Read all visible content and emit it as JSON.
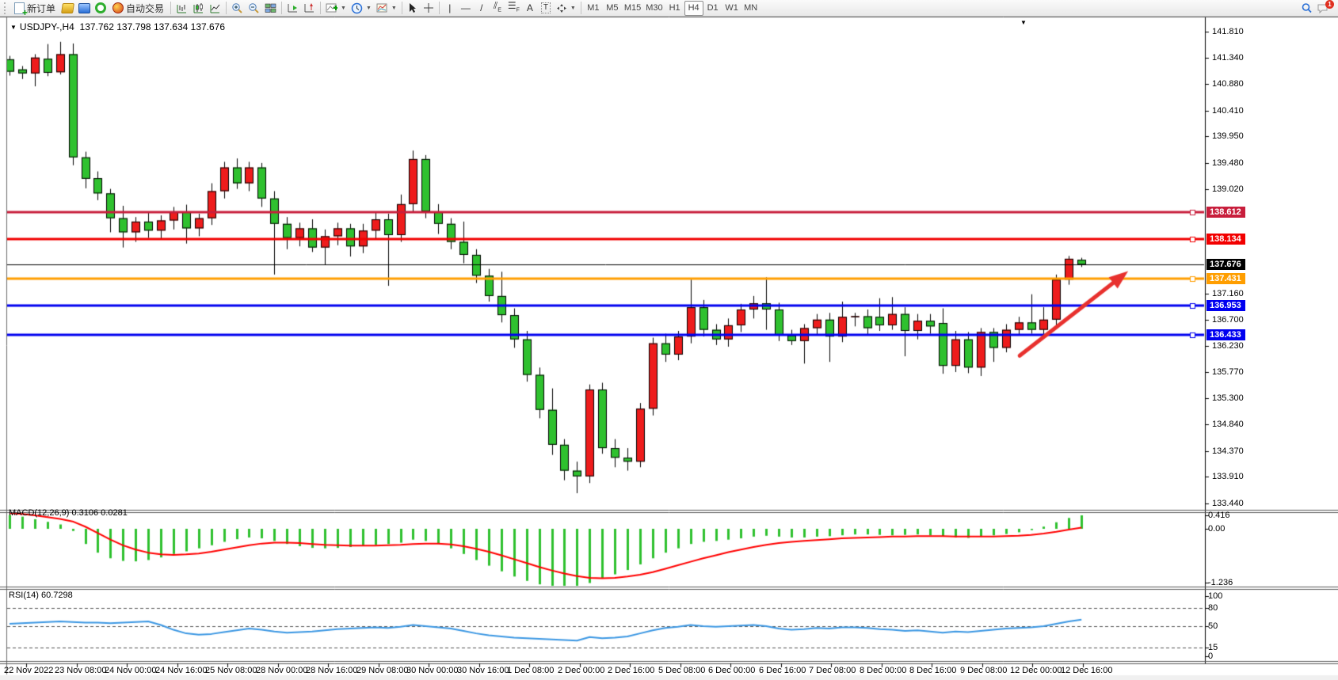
{
  "toolbar": {
    "new_order_label": "新订单",
    "auto_trading_label": "自动交易",
    "timeframes": [
      "M1",
      "M5",
      "M15",
      "M30",
      "H1",
      "H4",
      "D1",
      "W1",
      "MN"
    ],
    "active_timeframe": "H4",
    "notification_badge": "1"
  },
  "icons": {
    "new_order": "document-plus-icon",
    "charts_profile": "gold-cube-icon",
    "terminal": "blue-cube-icon",
    "signals": "green-ring-icon",
    "auto_trading": "red-amber-circle-icon",
    "chart_types": [
      "bar-chart-icon",
      "candlestick-chart-icon",
      "line-chart-icon"
    ],
    "zoom": [
      "zoom-in-icon",
      "zoom-out-icon"
    ],
    "windows": "tile-windows-icon",
    "scroll": [
      "auto-scroll-icon",
      "chart-shift-icon"
    ],
    "menus": [
      "indicators-icon",
      "periods-clock-icon",
      "templates-icon"
    ],
    "pointer": [
      "cursor-icon",
      "crosshair-icon"
    ],
    "objects": [
      "vertical-line-icon",
      "horizontal-line-icon",
      "trendline-icon",
      "equidistant-channel-icon",
      "fibonacci-icon",
      "text-icon",
      "text-label-icon",
      "arrows-icon"
    ],
    "right": [
      "search-icon",
      "chat-icon"
    ]
  },
  "chart": {
    "title_symbol": "USDJPY-,H4",
    "title_ohlc": "137.762 137.798 137.634 137.676",
    "macd_label": "MACD(12,26,9) 0.3106 0.0281",
    "rsi_label": "RSI(14) 60.7298",
    "collapse_marker": "▼"
  },
  "chart_data": {
    "type": "candlestick",
    "symbol": "USDJPY-",
    "timeframe": "H4",
    "title": "USDJPY-,H4 137.762 137.798 137.634 137.676",
    "legend_position": "top-left",
    "grid": "off",
    "price_axis_ticks": [
      141.81,
      141.34,
      140.88,
      140.41,
      139.95,
      139.48,
      139.02,
      137.16,
      136.7,
      136.23,
      135.77,
      135.3,
      134.84,
      134.37,
      133.91,
      133.44
    ],
    "h_lines": [
      {
        "price": 138.612,
        "label": "138.612",
        "color": "#c81e3c",
        "width": 3
      },
      {
        "price": 138.134,
        "label": "138.134",
        "color": "#f20000",
        "width": 3
      },
      {
        "price": 137.676,
        "label": "137.676",
        "color": "#000000",
        "width": 1
      },
      {
        "price": 137.431,
        "label": "137.431",
        "color": "#ff9e00",
        "width": 3
      },
      {
        "price": 136.953,
        "label": "136.953",
        "color": "#0000f0",
        "width": 3
      },
      {
        "price": 136.433,
        "label": "136.433",
        "color": "#0000f0",
        "width": 3
      }
    ],
    "colors": {
      "bull": "#ee1c1c",
      "bear": "#2fc12f",
      "wick": "#000000",
      "macd_hist": "#2fc12f",
      "macd_signal": "#ff0000",
      "rsi": "#3b97e3",
      "arrow": "#e8312e"
    },
    "candles_ohlc": [
      [
        141.32,
        141.38,
        141.03,
        141.1
      ],
      [
        141.14,
        141.2,
        140.97,
        141.07
      ],
      [
        141.07,
        141.41,
        140.84,
        141.35
      ],
      [
        141.33,
        141.59,
        141.02,
        141.08
      ],
      [
        141.09,
        141.63,
        141.05,
        141.41
      ],
      [
        141.41,
        141.6,
        139.44,
        139.58
      ],
      [
        139.58,
        139.68,
        139.03,
        139.2
      ],
      [
        139.21,
        139.33,
        138.82,
        138.94
      ],
      [
        138.94,
        139.02,
        138.25,
        138.5
      ],
      [
        138.5,
        138.72,
        137.98,
        138.25
      ],
      [
        138.25,
        138.52,
        138.08,
        138.44
      ],
      [
        138.44,
        138.62,
        138.15,
        138.28
      ],
      [
        138.28,
        138.55,
        138.12,
        138.46
      ],
      [
        138.46,
        138.7,
        138.3,
        138.62
      ],
      [
        138.62,
        138.74,
        138.05,
        138.32
      ],
      [
        138.32,
        138.58,
        138.18,
        138.5
      ],
      [
        138.5,
        139.12,
        138.38,
        138.98
      ],
      [
        138.98,
        139.5,
        138.85,
        139.4
      ],
      [
        139.4,
        139.56,
        139.02,
        139.12
      ],
      [
        139.12,
        139.5,
        138.98,
        139.4
      ],
      [
        139.4,
        139.48,
        138.7,
        138.85
      ],
      [
        138.85,
        138.98,
        137.5,
        138.4
      ],
      [
        138.4,
        138.52,
        137.95,
        138.15
      ],
      [
        138.15,
        138.42,
        138.0,
        138.32
      ],
      [
        138.32,
        138.48,
        137.9,
        137.98
      ],
      [
        137.98,
        138.3,
        137.68,
        138.18
      ],
      [
        138.18,
        138.42,
        138.02,
        138.32
      ],
      [
        138.32,
        138.4,
        137.82,
        138.0
      ],
      [
        138.0,
        138.4,
        137.88,
        138.28
      ],
      [
        138.28,
        138.6,
        138.12,
        138.48
      ],
      [
        138.48,
        138.58,
        137.3,
        138.2
      ],
      [
        138.2,
        138.92,
        138.08,
        138.75
      ],
      [
        138.75,
        139.7,
        138.6,
        139.55
      ],
      [
        139.55,
        139.62,
        138.5,
        138.62
      ],
      [
        138.62,
        138.75,
        138.22,
        138.4
      ],
      [
        138.4,
        138.5,
        137.95,
        138.08
      ],
      [
        138.08,
        138.44,
        137.7,
        137.85
      ],
      [
        137.85,
        137.95,
        137.35,
        137.48
      ],
      [
        137.48,
        137.6,
        137.02,
        137.12
      ],
      [
        137.12,
        137.55,
        136.65,
        136.78
      ],
      [
        136.78,
        136.9,
        136.2,
        136.35
      ],
      [
        136.35,
        136.5,
        135.6,
        135.72
      ],
      [
        135.72,
        135.85,
        134.95,
        135.1
      ],
      [
        135.1,
        135.48,
        134.3,
        134.48
      ],
      [
        134.48,
        134.58,
        133.85,
        134.02
      ],
      [
        134.02,
        134.18,
        133.62,
        133.92
      ],
      [
        133.92,
        135.55,
        133.8,
        135.46
      ],
      [
        135.46,
        135.58,
        134.32,
        134.42
      ],
      [
        134.42,
        134.58,
        134.08,
        134.25
      ],
      [
        134.25,
        134.42,
        134.02,
        134.18
      ],
      [
        134.18,
        135.22,
        134.08,
        135.12
      ],
      [
        135.12,
        136.38,
        135.0,
        136.28
      ],
      [
        136.28,
        136.45,
        135.95,
        136.08
      ],
      [
        136.08,
        136.5,
        135.98,
        136.4
      ],
      [
        136.4,
        137.41,
        136.28,
        136.92
      ],
      [
        136.92,
        137.05,
        136.4,
        136.52
      ],
      [
        136.52,
        136.62,
        136.25,
        136.35
      ],
      [
        136.35,
        136.72,
        136.22,
        136.6
      ],
      [
        136.6,
        136.98,
        136.48,
        136.88
      ],
      [
        136.88,
        137.12,
        136.72,
        136.99
      ],
      [
        136.99,
        137.45,
        136.52,
        136.88
      ],
      [
        136.88,
        137.0,
        136.32,
        136.42
      ],
      [
        136.42,
        136.52,
        136.25,
        136.32
      ],
      [
        136.32,
        136.62,
        135.92,
        136.55
      ],
      [
        136.55,
        136.8,
        136.42,
        136.7
      ],
      [
        136.7,
        136.82,
        135.95,
        136.4
      ],
      [
        136.4,
        137.02,
        136.3,
        136.75
      ],
      [
        136.75,
        136.82,
        136.58,
        136.76
      ],
      [
        136.76,
        136.88,
        136.42,
        136.55
      ],
      [
        136.75,
        137.08,
        136.5,
        136.6
      ],
      [
        136.6,
        137.1,
        136.52,
        136.8
      ],
      [
        136.8,
        136.92,
        136.05,
        136.5
      ],
      [
        136.5,
        136.8,
        136.35,
        136.68
      ],
      [
        136.68,
        136.8,
        136.45,
        136.58
      ],
      [
        136.64,
        136.9,
        135.74,
        135.88
      ],
      [
        135.88,
        136.5,
        135.77,
        136.35
      ],
      [
        136.35,
        136.48,
        135.75,
        135.85
      ],
      [
        135.85,
        136.55,
        135.7,
        136.48
      ],
      [
        136.48,
        136.55,
        135.95,
        136.2
      ],
      [
        136.2,
        136.62,
        136.12,
        136.52
      ],
      [
        136.52,
        136.75,
        136.42,
        136.65
      ],
      [
        136.65,
        137.15,
        136.45,
        136.52
      ],
      [
        136.52,
        136.92,
        136.44,
        136.7
      ],
      [
        136.7,
        137.5,
        136.55,
        137.41
      ],
      [
        137.41,
        137.83,
        137.32,
        137.78
      ],
      [
        137.762,
        137.798,
        137.634,
        137.676
      ]
    ],
    "macd": {
      "label": "MACD(12,26,9) 0.3106 0.0281",
      "axis_labels": [
        "0.416",
        "0.00",
        "-1.236"
      ],
      "histogram": [
        0.32,
        0.28,
        0.22,
        0.16,
        0.1,
        -0.05,
        -0.35,
        -0.55,
        -0.68,
        -0.74,
        -0.75,
        -0.72,
        -0.66,
        -0.58,
        -0.52,
        -0.45,
        -0.38,
        -0.3,
        -0.24,
        -0.2,
        -0.22,
        -0.28,
        -0.35,
        -0.4,
        -0.44,
        -0.45,
        -0.44,
        -0.42,
        -0.4,
        -0.37,
        -0.35,
        -0.32,
        -0.25,
        -0.28,
        -0.35,
        -0.45,
        -0.58,
        -0.72,
        -0.85,
        -0.98,
        -1.1,
        -1.2,
        -1.28,
        -1.33,
        -1.35,
        -1.34,
        -1.25,
        -1.15,
        -1.05,
        -0.95,
        -0.82,
        -0.68,
        -0.55,
        -0.45,
        -0.35,
        -0.3,
        -0.28,
        -0.25,
        -0.22,
        -0.18,
        -0.16,
        -0.18,
        -0.2,
        -0.2,
        -0.18,
        -0.17,
        -0.15,
        -0.13,
        -0.13,
        -0.14,
        -0.15,
        -0.14,
        -0.13,
        -0.15,
        -0.18,
        -0.2,
        -0.21,
        -0.18,
        -0.15,
        -0.12,
        -0.08,
        -0.03,
        0.05,
        0.15,
        0.25,
        0.3106
      ],
      "signal": [
        0.36,
        0.34,
        0.31,
        0.27,
        0.23,
        0.17,
        0.05,
        -0.1,
        -0.25,
        -0.38,
        -0.48,
        -0.55,
        -0.59,
        -0.6,
        -0.59,
        -0.57,
        -0.53,
        -0.48,
        -0.43,
        -0.38,
        -0.34,
        -0.32,
        -0.32,
        -0.33,
        -0.35,
        -0.37,
        -0.38,
        -0.39,
        -0.39,
        -0.39,
        -0.38,
        -0.37,
        -0.35,
        -0.34,
        -0.34,
        -0.36,
        -0.4,
        -0.46,
        -0.53,
        -0.61,
        -0.7,
        -0.79,
        -0.88,
        -0.96,
        -1.03,
        -1.09,
        -1.13,
        -1.14,
        -1.13,
        -1.1,
        -1.06,
        -1.0,
        -0.92,
        -0.84,
        -0.76,
        -0.68,
        -0.61,
        -0.54,
        -0.48,
        -0.42,
        -0.37,
        -0.33,
        -0.3,
        -0.28,
        -0.26,
        -0.24,
        -0.22,
        -0.21,
        -0.2,
        -0.19,
        -0.18,
        -0.18,
        -0.17,
        -0.17,
        -0.17,
        -0.18,
        -0.18,
        -0.18,
        -0.18,
        -0.17,
        -0.16,
        -0.14,
        -0.11,
        -0.07,
        -0.02,
        0.0281
      ]
    },
    "rsi": {
      "label": "RSI(14) 60.7298",
      "axis_labels": [
        "100",
        "80",
        "50",
        "15",
        "0"
      ],
      "levels": [
        80,
        50,
        15
      ],
      "values": [
        54,
        55,
        56,
        57,
        58,
        57,
        56,
        56,
        55,
        56,
        57,
        58,
        52,
        44,
        38,
        36,
        37,
        40,
        43,
        46,
        44,
        41,
        39,
        40,
        41,
        43,
        45,
        46,
        47,
        48,
        47,
        49,
        52,
        50,
        48,
        46,
        42,
        38,
        35,
        33,
        31,
        30,
        29,
        28,
        27,
        26,
        32,
        30,
        31,
        33,
        38,
        43,
        47,
        49,
        52,
        50,
        49,
        50,
        51,
        52,
        50,
        46,
        44,
        45,
        47,
        46,
        48,
        48,
        47,
        45,
        44,
        42,
        43,
        41,
        39,
        41,
        40,
        42,
        44,
        46,
        47,
        48,
        50,
        54,
        58,
        60.7298
      ]
    },
    "x_axis_labels": [
      "22 Nov 2022",
      "23 Nov 08:00",
      "24 Nov 00:00",
      "24 Nov 16:00",
      "25 Nov 08:00",
      "28 Nov 00:00",
      "28 Nov 16:00",
      "29 Nov 08:00",
      "30 Nov 00:00",
      "30 Nov 16:00",
      "1 Dec 08:00",
      "2 Dec 00:00",
      "2 Dec 16:00",
      "5 Dec 08:00",
      "6 Dec 00:00",
      "6 Dec 16:00",
      "7 Dec 08:00",
      "8 Dec 00:00",
      "8 Dec 16:00",
      "9 Dec 08:00",
      "12 Dec 00:00",
      "12 Dec 16:00"
    ],
    "annotations": [
      {
        "type": "arrow",
        "from_bar": 80.1,
        "from_price": 136.06,
        "to_bar": 88.7,
        "to_price": 137.56,
        "color": "#e8312e"
      }
    ],
    "ylim_main": [
      133.3,
      141.95
    ],
    "ylim_macd": [
      -1.4,
      0.416
    ],
    "ylim_rsi": [
      0,
      100
    ]
  }
}
